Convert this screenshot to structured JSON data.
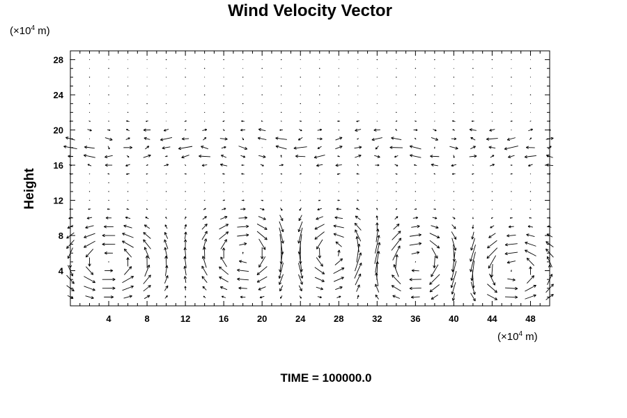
{
  "chart_data": {
    "type": "vector_field",
    "title": "Wind Velocity Vector",
    "ylabel": "Height",
    "x_unit": {
      "prefix": "(×10",
      "exp": "4",
      "suffix": " m)"
    },
    "y_unit": {
      "prefix": "(×10",
      "exp": "4",
      "suffix": " m)"
    },
    "xlim": [
      0,
      50
    ],
    "ylim": [
      0,
      29
    ],
    "x_ticks": [
      4,
      8,
      12,
      16,
      20,
      24,
      28,
      32,
      36,
      40,
      44,
      48
    ],
    "y_ticks": [
      4,
      8,
      12,
      16,
      20,
      24,
      28
    ],
    "grid": false,
    "time_label": "TIME = 100000.0",
    "field": {
      "x_spacing": 2,
      "y_spacing": 1,
      "vectors_x": [
        0,
        2,
        4,
        6,
        8,
        10,
        12,
        14,
        16,
        18,
        20,
        22,
        24,
        26,
        28,
        30,
        32,
        34,
        36,
        38,
        40,
        42,
        44,
        46,
        48,
        50
      ],
      "vectors_y": [
        1,
        2,
        3,
        4,
        5,
        6,
        7,
        8,
        9,
        10,
        11,
        12,
        13,
        14,
        15,
        16,
        17,
        18,
        19,
        20,
        21,
        22,
        23,
        24,
        25,
        26,
        27,
        28
      ],
      "arrow_color": "#000000"
    }
  },
  "colors": {
    "background": "#ffffff",
    "axis": "#000000",
    "arrow": "#000000"
  }
}
